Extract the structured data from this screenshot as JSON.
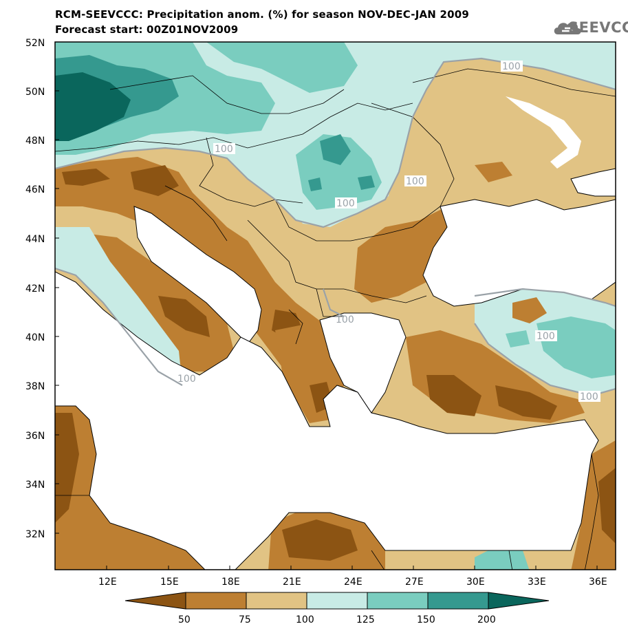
{
  "title_line1": "RCM-SEEVCCC: Precipitation anom. (%) for season NOV-DEC-JAN 2009",
  "title_line2": "Forecast start: 00Z01NOV2009",
  "logo_text": "SEEVCCC",
  "lat_labels": [
    "52N",
    "50N",
    "48N",
    "46N",
    "44N",
    "42N",
    "40N",
    "38N",
    "36N",
    "34N",
    "32N"
  ],
  "lon_labels": [
    "12E",
    "15E",
    "18E",
    "21E",
    "24E",
    "27E",
    "30E",
    "33E",
    "36E"
  ],
  "contour_labels": [
    "100",
    "100",
    "100",
    "100",
    "100",
    "100",
    "100",
    "100"
  ],
  "colorbar": {
    "ticks": [
      "50",
      "75",
      "100",
      "125",
      "150",
      "200"
    ],
    "colors": [
      "#8c5413",
      "#bd7f32",
      "#e1c384",
      "#c8ebe5",
      "#7acdbf",
      "#35998f",
      "#0a665c"
    ]
  },
  "colors": {
    "sea": "#ffffff",
    "coast": "#000000",
    "contour_100": "#9aa2a8"
  }
}
